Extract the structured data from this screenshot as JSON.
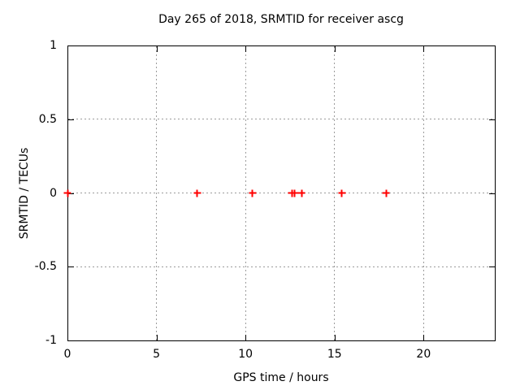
{
  "window": {
    "background_color": "#ffffff",
    "text_color": "#000000",
    "grid_color": "#9c9c9c",
    "border_color": "#000000"
  },
  "chart_data": {
    "type": "scatter",
    "title": "Day 265 of 2018, SRMTID for receiver ascg",
    "xlabel": "GPS time / hours",
    "ylabel": "SRMTID / TECUs",
    "xlim": [
      0,
      24
    ],
    "ylim": [
      -1,
      1
    ],
    "x_ticks": [
      0,
      5,
      10,
      15,
      20
    ],
    "x_tick_labels": [
      "0",
      "5",
      "10",
      "15",
      "20"
    ],
    "y_ticks": [
      -1,
      -0.5,
      0,
      0.5,
      1
    ],
    "y_tick_labels": [
      "-1",
      "-0.5",
      "0",
      "0.5",
      "1"
    ],
    "grid": true,
    "legend": "none",
    "marker": "plus",
    "marker_color": "#ff0000",
    "points": [
      {
        "x": 0.0,
        "y": 0
      },
      {
        "x": 7.3,
        "y": 0
      },
      {
        "x": 10.4,
        "y": 0
      },
      {
        "x": 12.6,
        "y": 0
      },
      {
        "x": 12.75,
        "y": 0
      },
      {
        "x": 13.15,
        "y": 0
      },
      {
        "x": 15.4,
        "y": 0
      },
      {
        "x": 17.9,
        "y": 0
      }
    ]
  }
}
